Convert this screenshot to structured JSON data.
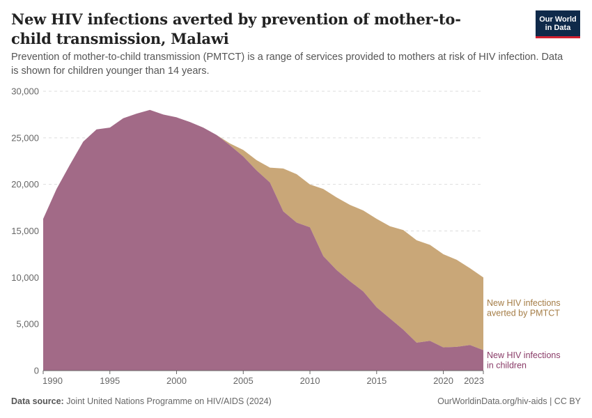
{
  "header": {
    "title": "New HIV infections averted by prevention of mother-to-child transmission, Malawi",
    "subtitle": "Prevention of mother-to-child transmission (PMTCT) is a range of services provided to mothers at risk of HIV infection. Data is shown for children younger than 14 years."
  },
  "logo": {
    "line1": "Our World",
    "line2": "in Data"
  },
  "footer": {
    "source_label": "Data source:",
    "source_text": "Joint United Nations Programme on HIV/AIDS (2024)",
    "url_license": "OurWorldinData.org/hiv-aids | CC BY"
  },
  "colors": {
    "children": "#a26a87",
    "averted": "#c9a778",
    "children_label": "#8a3c68",
    "averted_label": "#a47c45",
    "grid": "#dddddd",
    "axis_text": "#666666"
  },
  "chart_data": {
    "type": "area",
    "stacked": true,
    "title": "New HIV infections averted by prevention of mother-to-child transmission, Malawi",
    "xlabel": "",
    "ylabel": "",
    "xlim": [
      1990,
      2023
    ],
    "ylim": [
      0,
      30000
    ],
    "y_ticks": [
      0,
      5000,
      10000,
      15000,
      20000,
      25000,
      30000
    ],
    "y_tick_labels": [
      "0",
      "5,000",
      "10,000",
      "15,000",
      "20,000",
      "25,000",
      "30,000"
    ],
    "x_ticks": [
      1990,
      1995,
      2000,
      2005,
      2010,
      2015,
      2020,
      2023
    ],
    "x_tick_labels": [
      "1990",
      "1995",
      "2000",
      "2005",
      "2010",
      "2015",
      "2020",
      "2023"
    ],
    "grid": true,
    "x": [
      1990,
      1991,
      1992,
      1993,
      1994,
      1995,
      1996,
      1997,
      1998,
      1999,
      2000,
      2001,
      2002,
      2003,
      2004,
      2005,
      2006,
      2007,
      2008,
      2009,
      2010,
      2011,
      2012,
      2013,
      2014,
      2015,
      2016,
      2017,
      2018,
      2019,
      2020,
      2021,
      2022,
      2023
    ],
    "series": [
      {
        "name": "New HIV infections in children",
        "label_lines": [
          "New HIV infections",
          "in children"
        ],
        "values": [
          16300,
          19500,
          22100,
          24600,
          25900,
          26100,
          27100,
          27600,
          28000,
          27500,
          27200,
          26700,
          26100,
          25300,
          24200,
          23000,
          21500,
          20200,
          17100,
          15900,
          15400,
          12300,
          10800,
          9600,
          8500,
          6800,
          5600,
          4400,
          3000,
          3200,
          2500,
          2550,
          2750,
          2200
        ]
      },
      {
        "name": "New HIV infections averted by PMTCT",
        "label_lines": [
          "New HIV infections",
          "averted by PMTCT"
        ],
        "values": [
          0,
          0,
          0,
          0,
          0,
          0,
          0,
          0,
          0,
          0,
          0,
          0,
          0,
          0,
          200,
          700,
          1100,
          1600,
          4600,
          5200,
          4600,
          7200,
          7800,
          8200,
          8700,
          9500,
          9900,
          10700,
          11000,
          10300,
          10000,
          9350,
          8250,
          7800
        ]
      }
    ]
  }
}
